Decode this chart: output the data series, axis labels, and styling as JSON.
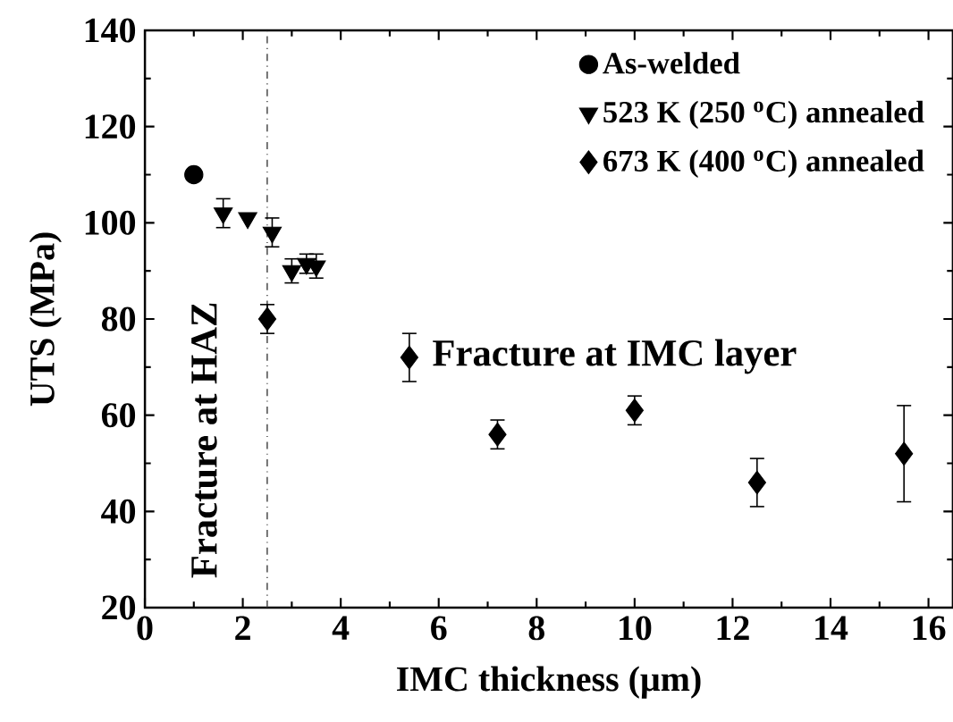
{
  "chart_data": {
    "type": "scatter",
    "xlabel": "IMC thickness (μm)",
    "ylabel": "UTS (MPa)",
    "xlim": [
      0,
      16.5
    ],
    "ylim": [
      20,
      140
    ],
    "xticks": [
      0,
      2,
      4,
      6,
      8,
      10,
      12,
      14,
      16
    ],
    "yticks": [
      20,
      40,
      60,
      80,
      100,
      120,
      140
    ],
    "grid": false,
    "legend": "top right",
    "series": [
      {
        "name": "As-welded",
        "color": "#000000",
        "marker": "circle",
        "x": [
          1.0
        ],
        "values": [
          110
        ],
        "errors": [
          null
        ]
      },
      {
        "name": "523 K (250 $^{o}$C) annealed",
        "color": "#000000",
        "marker": "triangle",
        "x": [
          1.6,
          2.1,
          2.6,
          3.0,
          3.3,
          3.5
        ],
        "values": [
          102,
          101,
          98,
          90,
          91.5,
          91
        ],
        "errors": [
          3,
          null,
          3,
          2.5,
          2,
          2.5
        ]
      },
      {
        "name": "673 K (400 $^{o}$C) annealed",
        "color": "#000000",
        "marker": "diamond",
        "x": [
          2.5,
          5.4,
          7.2,
          10,
          12.5,
          15.5
        ],
        "values": [
          80,
          72,
          56,
          61,
          46,
          52
        ],
        "errors": [
          3,
          5,
          3,
          3,
          5,
          10
        ]
      }
    ],
    "ref_lines": [
      {
        "axis": "x",
        "value": 2.5,
        "line_style": "dashed",
        "color": "#404040"
      }
    ],
    "annotations": [
      "Fracture at HAZ",
      "Fracture at IMC layer"
    ]
  }
}
